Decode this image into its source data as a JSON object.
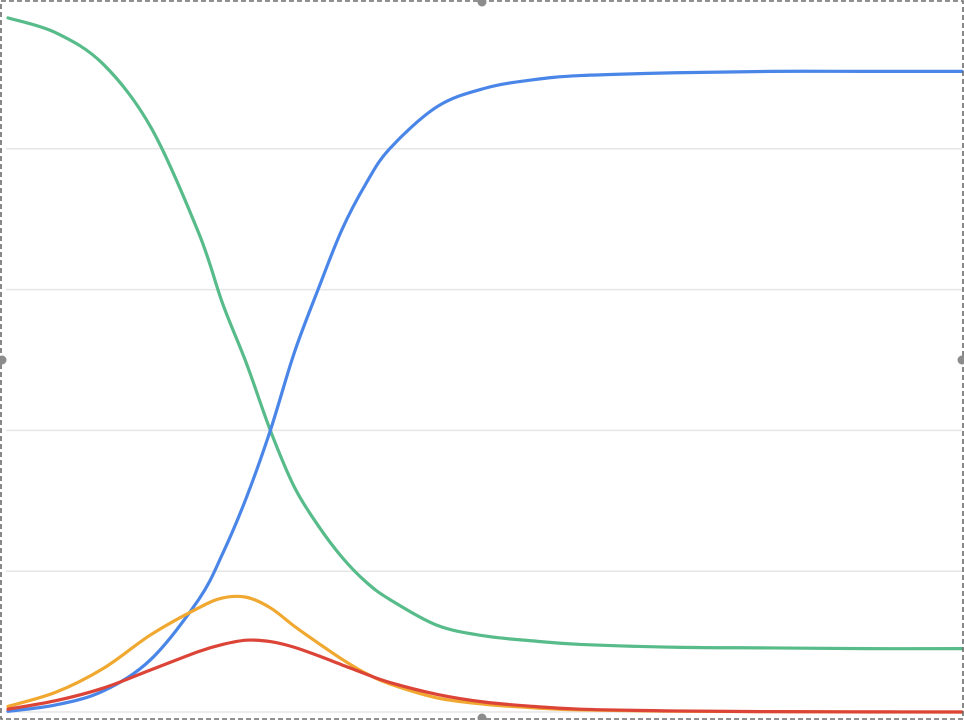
{
  "chart_data": {
    "type": "line",
    "title": "",
    "xlabel": "",
    "ylabel": "",
    "xlim": [
      0,
      100
    ],
    "ylim": [
      0,
      100
    ],
    "y_gridlines": [
      0,
      20,
      40,
      60,
      80
    ],
    "grid": "horizontal",
    "legend": "none",
    "selected": true,
    "x": [
      0,
      5,
      10,
      15,
      20,
      22.5,
      25,
      27.5,
      30,
      32.5,
      35,
      37.5,
      40,
      45,
      50,
      55,
      60,
      70,
      80,
      90,
      100
    ],
    "series": [
      {
        "color": "#57bb8a",
        "values": [
          98.6,
          96.5,
          92.0,
          83.0,
          68.0,
          58.0,
          49.5,
          40.0,
          32.0,
          26.5,
          22.0,
          18.5,
          16.0,
          12.3,
          10.8,
          10.1,
          9.6,
          9.2,
          9.1,
          9.0,
          9.0
        ]
      },
      {
        "color": "#4a86e8",
        "values": [
          0.1,
          1.0,
          3.0,
          7.5,
          16.0,
          22.5,
          30.5,
          40.0,
          51.0,
          60.0,
          68.5,
          75.0,
          80.0,
          86.0,
          88.6,
          89.8,
          90.4,
          90.8,
          91.0,
          91.0,
          91.0
        ]
      },
      {
        "color": "#f0a830",
        "values": [
          0.8,
          2.8,
          6.2,
          11.0,
          14.8,
          16.2,
          16.3,
          14.8,
          12.2,
          9.8,
          7.5,
          5.5,
          4.0,
          2.0,
          1.1,
          0.6,
          0.3,
          0.1,
          0.05,
          0.0,
          0.0
        ]
      },
      {
        "color": "#db4437",
        "values": [
          0.4,
          1.6,
          3.4,
          6.0,
          8.6,
          9.6,
          10.2,
          10.0,
          9.2,
          8.0,
          6.7,
          5.4,
          4.2,
          2.5,
          1.4,
          0.8,
          0.4,
          0.15,
          0.05,
          0.02,
          0.0
        ]
      }
    ]
  }
}
